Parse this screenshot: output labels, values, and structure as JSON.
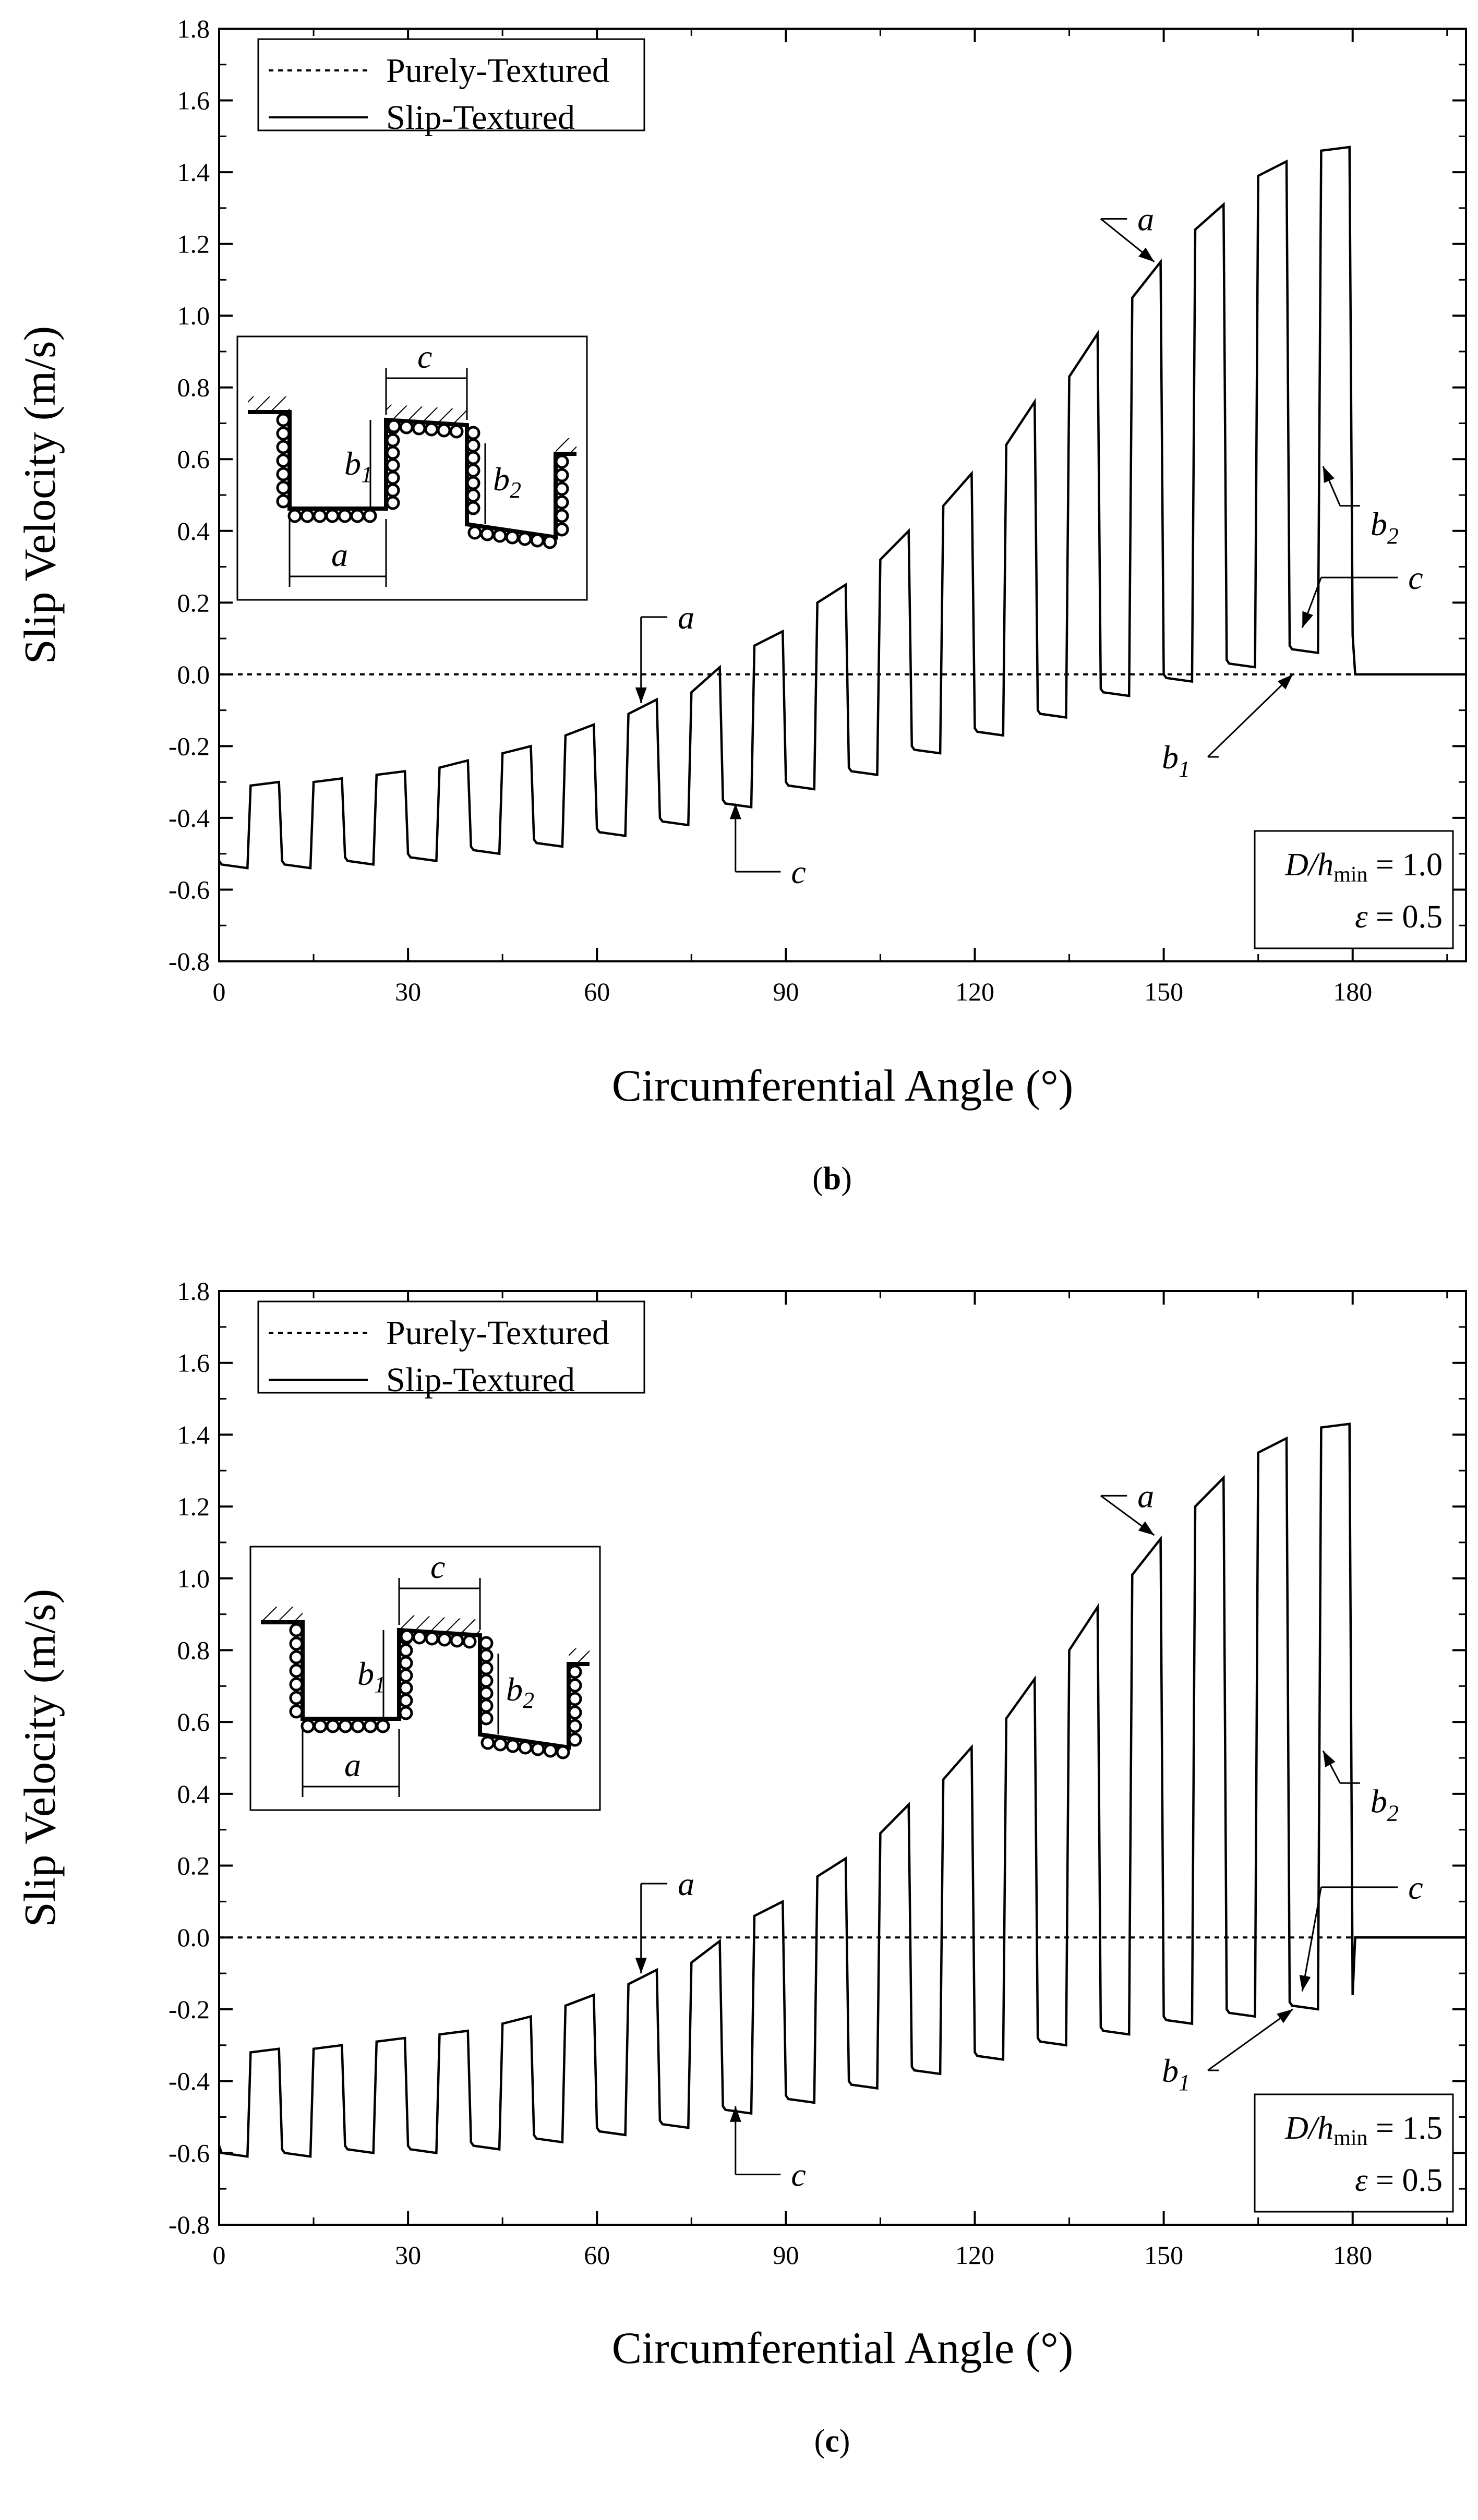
{
  "figure": {
    "xlabel": "Circumferential Angle (°)",
    "ylabel": "Slip Velocity (m/s)",
    "legend": {
      "purely": "Purely-Textured",
      "slip": "Slip-Textured",
      "placement": "top-left"
    },
    "inset_labels": {
      "a": "a",
      "b1": "b",
      "b1_sub": "1",
      "b2": "b",
      "b2_sub": "2",
      "c": "c"
    },
    "annotation_labels": {
      "a": "a",
      "b": "b",
      "b1_sub": "1",
      "b2_sub": "2",
      "c": "c"
    },
    "param_labels": {
      "D": "D",
      "h": "/h",
      "min": "min",
      "eps": "ε",
      "eq": " = "
    },
    "paren_open": "(",
    "paren_close": ")"
  },
  "chart_data": [
    {
      "type": "line",
      "caption": "b",
      "D_over_hmin": "1.0",
      "epsilon": "0.5",
      "xlim": [
        0,
        198
      ],
      "ylim": [
        -0.8,
        1.8
      ],
      "xticks": [
        0,
        30,
        60,
        90,
        120,
        150,
        180
      ],
      "yticks": [
        -0.8,
        -0.6,
        -0.4,
        -0.2,
        0.0,
        0.2,
        0.4,
        0.6,
        0.8,
        1.0,
        1.2,
        1.4,
        1.6,
        1.8
      ],
      "xtick_labels": [
        "0",
        "30",
        "60",
        "90",
        "120",
        "150",
        "180"
      ],
      "ytick_labels": [
        "-0.8",
        "-0.6",
        "-0.4",
        "-0.2",
        "0.0",
        "0.2",
        "0.4",
        "0.6",
        "0.8",
        "1.0",
        "1.2",
        "1.4",
        "1.6",
        "1.8"
      ],
      "series": [
        {
          "name": "Purely-Textured",
          "style": "dotted",
          "x": [
            0,
            198
          ],
          "y": [
            0.0,
            0.0
          ]
        },
        {
          "name": "Slip-Textured",
          "style": "solid",
          "x": [
            0,
            0.4,
            4.5,
            5.0,
            9.5,
            10.0,
            10.4,
            14.5,
            15.0,
            19.5,
            20.0,
            20.4,
            24.5,
            25.0,
            29.5,
            30.0,
            30.4,
            34.5,
            35.0,
            39.5,
            40.0,
            40.4,
            44.5,
            45.0,
            49.5,
            50.0,
            50.4,
            54.5,
            55.0,
            59.5,
            60.0,
            60.4,
            64.5,
            65.0,
            69.5,
            70.0,
            70.4,
            74.5,
            75.0,
            79.5,
            80.0,
            80.4,
            84.5,
            85.0,
            89.5,
            90.0,
            90.4,
            94.5,
            95.0,
            99.5,
            100.0,
            100.4,
            104.5,
            105.0,
            109.5,
            110.0,
            110.4,
            114.5,
            115.0,
            119.5,
            120.0,
            120.4,
            124.5,
            125.0,
            129.5,
            130.0,
            130.4,
            134.5,
            135.0,
            139.5,
            140.0,
            140.4,
            144.5,
            145.0,
            149.5,
            150.0,
            150.4,
            154.5,
            155.0,
            159.5,
            160.0,
            160.4,
            164.5,
            165.0,
            169.5,
            170.0,
            170.4,
            174.5,
            175.0,
            179.5,
            180.0,
            180.4,
            198.0
          ],
          "y": [
            -0.52,
            -0.53,
            -0.54,
            -0.31,
            -0.3,
            -0.52,
            -0.53,
            -0.54,
            -0.3,
            -0.29,
            -0.51,
            -0.52,
            -0.53,
            -0.28,
            -0.27,
            -0.5,
            -0.51,
            -0.52,
            -0.26,
            -0.24,
            -0.48,
            -0.49,
            -0.5,
            -0.22,
            -0.2,
            -0.46,
            -0.47,
            -0.48,
            -0.17,
            -0.14,
            -0.43,
            -0.44,
            -0.45,
            -0.11,
            -0.07,
            -0.4,
            -0.41,
            -0.42,
            -0.05,
            0.02,
            -0.35,
            -0.36,
            -0.37,
            0.08,
            0.12,
            -0.3,
            -0.31,
            -0.32,
            0.2,
            0.25,
            -0.26,
            -0.27,
            -0.28,
            0.32,
            0.4,
            -0.2,
            -0.21,
            -0.22,
            0.47,
            0.56,
            -0.15,
            -0.16,
            -0.17,
            0.64,
            0.76,
            -0.1,
            -0.11,
            -0.12,
            0.83,
            0.95,
            -0.04,
            -0.05,
            -0.06,
            1.05,
            1.15,
            0.0,
            -0.01,
            -0.02,
            1.24,
            1.31,
            0.04,
            0.03,
            0.02,
            1.39,
            1.43,
            0.08,
            0.07,
            0.06,
            1.46,
            1.47,
            0.11,
            0.0,
            0.0
          ]
        }
      ]
    },
    {
      "type": "line",
      "caption": "c",
      "D_over_hmin": "1.5",
      "epsilon": "0.5",
      "xlim": [
        0,
        198
      ],
      "ylim": [
        -0.8,
        1.8
      ],
      "xticks": [
        0,
        30,
        60,
        90,
        120,
        150,
        180
      ],
      "yticks": [
        -0.8,
        -0.6,
        -0.4,
        -0.2,
        0.0,
        0.2,
        0.4,
        0.6,
        0.8,
        1.0,
        1.2,
        1.4,
        1.6,
        1.8
      ],
      "xtick_labels": [
        "0",
        "30",
        "60",
        "90",
        "120",
        "150",
        "180"
      ],
      "ytick_labels": [
        "-0.8",
        "-0.6",
        "-0.4",
        "-0.2",
        "0.0",
        "0.2",
        "0.4",
        "0.6",
        "0.8",
        "1.0",
        "1.2",
        "1.4",
        "1.6",
        "1.8"
      ],
      "series": [
        {
          "name": "Purely-Textured",
          "style": "dotted",
          "x": [
            0,
            198
          ],
          "y": [
            0.0,
            0.0
          ]
        },
        {
          "name": "Slip-Textured",
          "style": "solid",
          "x": [
            0,
            0.4,
            4.5,
            5.0,
            9.5,
            10.0,
            10.4,
            14.5,
            15.0,
            19.5,
            20.0,
            20.4,
            24.5,
            25.0,
            29.5,
            30.0,
            30.4,
            34.5,
            35.0,
            39.5,
            40.0,
            40.4,
            44.5,
            45.0,
            49.5,
            50.0,
            50.4,
            54.5,
            55.0,
            59.5,
            60.0,
            60.4,
            64.5,
            65.0,
            69.5,
            70.0,
            70.4,
            74.5,
            75.0,
            79.5,
            80.0,
            80.4,
            84.5,
            85.0,
            89.5,
            90.0,
            90.4,
            94.5,
            95.0,
            99.5,
            100.0,
            100.4,
            104.5,
            105.0,
            109.5,
            110.0,
            110.4,
            114.5,
            115.0,
            119.5,
            120.0,
            120.4,
            124.5,
            125.0,
            129.5,
            130.0,
            130.4,
            134.5,
            135.0,
            139.5,
            140.0,
            140.4,
            144.5,
            145.0,
            149.5,
            150.0,
            150.4,
            154.5,
            155.0,
            159.5,
            160.0,
            160.4,
            164.5,
            165.0,
            169.5,
            170.0,
            170.4,
            174.5,
            175.0,
            179.5,
            180.0,
            180.4,
            198.0
          ],
          "y": [
            -0.58,
            -0.6,
            -0.61,
            -0.32,
            -0.31,
            -0.59,
            -0.6,
            -0.61,
            -0.31,
            -0.3,
            -0.58,
            -0.59,
            -0.6,
            -0.29,
            -0.28,
            -0.58,
            -0.59,
            -0.6,
            -0.27,
            -0.26,
            -0.57,
            -0.58,
            -0.59,
            -0.24,
            -0.22,
            -0.55,
            -0.56,
            -0.57,
            -0.19,
            -0.16,
            -0.53,
            -0.54,
            -0.55,
            -0.13,
            -0.09,
            -0.51,
            -0.52,
            -0.53,
            -0.07,
            -0.01,
            -0.47,
            -0.48,
            -0.49,
            0.06,
            0.1,
            -0.44,
            -0.45,
            -0.46,
            0.17,
            0.22,
            -0.4,
            -0.41,
            -0.42,
            0.29,
            0.37,
            -0.36,
            -0.37,
            -0.38,
            0.44,
            0.53,
            -0.32,
            -0.33,
            -0.34,
            0.61,
            0.72,
            -0.28,
            -0.29,
            -0.3,
            0.8,
            0.92,
            -0.25,
            -0.26,
            -0.27,
            1.01,
            1.11,
            -0.22,
            -0.23,
            -0.24,
            1.2,
            1.28,
            -0.2,
            -0.21,
            -0.22,
            1.35,
            1.39,
            -0.18,
            -0.19,
            -0.2,
            1.42,
            1.43,
            -0.16,
            0.0,
            0.0
          ]
        }
      ]
    }
  ]
}
